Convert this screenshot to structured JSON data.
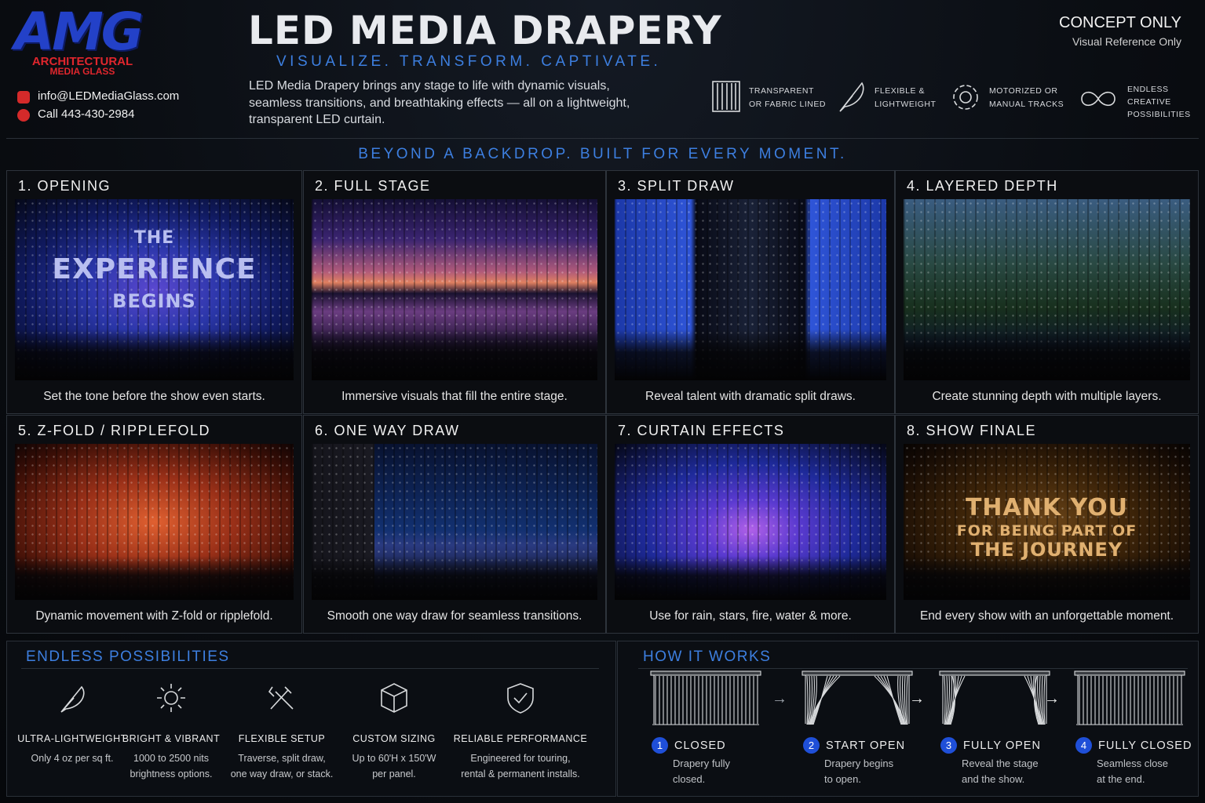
{
  "header": {
    "logo": "AMG",
    "logo_line1": "ARCHITECTURAL",
    "logo_line2": "MEDIA GLASS",
    "email": "info@LEDMediaGlass.com",
    "phone": "Call 443-430-2984",
    "title": "LED MEDIA DRAPERY",
    "tagline": "VISUALIZE. TRANSFORM. CAPTIVATE.",
    "description": "LED Media Drapery brings any stage to life with dynamic visuals, seamless transitions, and breathtaking effects — all on a lightweight, transparent LED curtain.",
    "notice": "CONCEPT ONLY",
    "notice_sub": "Visual Reference Only",
    "features": [
      {
        "lines": [
          "TRANSPARENT",
          "OR FABRIC LINED"
        ]
      },
      {
        "lines": [
          "FLEXIBLE &",
          "LIGHTWEIGHT"
        ]
      },
      {
        "lines": [
          "MOTORIZED OR",
          "MANUAL TRACKS"
        ]
      },
      {
        "lines": [
          "ENDLESS",
          "CREATIVE",
          "POSSIBILITIES"
        ]
      }
    ]
  },
  "section_heading": "BEYOND A BACKDROP.   BUILT FOR EVERY MOMENT.",
  "panels": [
    {
      "title": "1. OPENING",
      "caption": "Set the tone before the show even starts.",
      "overlay": [
        "THE",
        "EXPERIENCE",
        "BEGINS"
      ]
    },
    {
      "title": "2. FULL STAGE",
      "caption": "Immersive visuals that fill the entire stage."
    },
    {
      "title": "3. SPLIT DRAW",
      "caption": "Reveal talent with dramatic split draws."
    },
    {
      "title": "4. LAYERED DEPTH",
      "caption": "Create stunning depth with multiple layers."
    },
    {
      "title": "5. Z-FOLD / RIPPLEFOLD",
      "caption": "Dynamic movement with Z-fold or ripplefold."
    },
    {
      "title": "6. ONE WAY DRAW",
      "caption": "Smooth one way draw for seamless transitions."
    },
    {
      "title": "7. CURTAIN EFFECTS",
      "caption": "Use for rain, stars, fire, water & more."
    },
    {
      "title": "8. SHOW FINALE",
      "caption": "End every show with an unforgettable moment.",
      "overlay": [
        "THANK YOU",
        "FOR BEING PART OF",
        "THE JOURNEY"
      ]
    }
  ],
  "possibilities": {
    "heading": "ENDLESS POSSIBILITIES",
    "items": [
      {
        "title": "ULTRA-LIGHTWEIGHT",
        "lines": [
          "Only 4 oz per sq ft."
        ]
      },
      {
        "title": "BRIGHT & VIBRANT",
        "lines": [
          "1000 to 2500 nits",
          "brightness options."
        ]
      },
      {
        "title": "FLEXIBLE SETUP",
        "lines": [
          "Traverse, split draw,",
          "one way draw, or stack."
        ]
      },
      {
        "title": "CUSTOM SIZING",
        "lines": [
          "Up to 60'H x 150'W",
          "per panel."
        ]
      },
      {
        "title": "RELIABLE PERFORMANCE",
        "lines": [
          "Engineered for touring,",
          "rental & permanent installs."
        ]
      }
    ]
  },
  "how_it_works": {
    "heading": "HOW IT WORKS",
    "steps": [
      {
        "number": 1,
        "title": "CLOSED",
        "lines": [
          "Drapery fully",
          "closed."
        ]
      },
      {
        "number": 2,
        "title": "START OPEN",
        "lines": [
          "Drapery begins",
          "to open."
        ]
      },
      {
        "number": 3,
        "title": "FULLY OPEN",
        "lines": [
          "Reveal the stage",
          "and the show."
        ]
      },
      {
        "number": 4,
        "title": "FULLY CLOSED",
        "lines": [
          "Seamless close",
          "at the end."
        ]
      }
    ]
  }
}
